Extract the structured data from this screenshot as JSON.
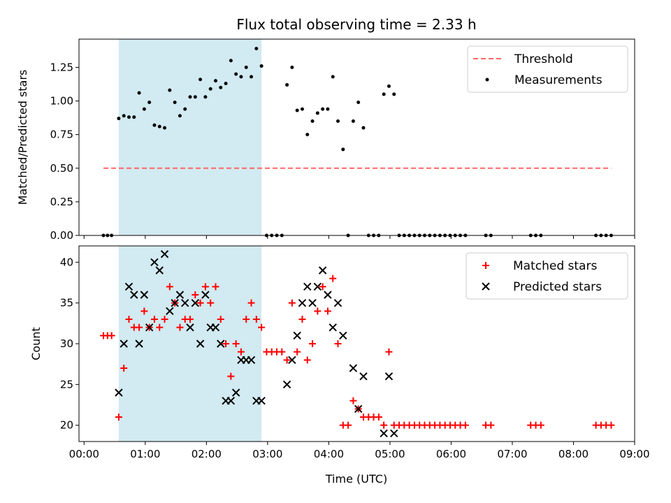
{
  "chart_data": {
    "type": "scatter",
    "title": "Flux total observing time = 2.33 h",
    "shaded_interval": {
      "start": "00:34",
      "end": "02:54",
      "color": "#add8e6"
    },
    "x_axis": {
      "label": "Time (UTC)",
      "range": [
        "23:55",
        "09:00"
      ],
      "ticks": [
        "00:00",
        "01:00",
        "02:00",
        "03:00",
        "04:00",
        "05:00",
        "06:00",
        "07:00",
        "08:00",
        "09:00"
      ]
    },
    "panels": [
      {
        "ylabel": "Matched/Predicted stars",
        "ylim": [
          0,
          1.46
        ],
        "yticks": [
          "0.00",
          "0.25",
          "0.50",
          "0.75",
          "1.00",
          "1.25"
        ],
        "legend": [
          "Threshold",
          "Measurements"
        ],
        "threshold": {
          "name": "Threshold",
          "value": 0.5,
          "x_start": "00:19",
          "x_end": "08:37",
          "color": "#ff6666"
        },
        "series": [
          {
            "name": "Measurements",
            "color": "#000000",
            "points": [
              [
                "00:19",
                0
              ],
              [
                "00:23",
                0
              ],
              [
                "00:27",
                0
              ],
              [
                "00:34",
                0.87
              ],
              [
                "00:39",
                0.89
              ],
              [
                "00:44",
                0.88
              ],
              [
                "00:49",
                0.88
              ],
              [
                "00:54",
                1.06
              ],
              [
                "00:59",
                0.94
              ],
              [
                "01:04",
                0.99
              ],
              [
                "01:09",
                0.82
              ],
              [
                "01:14",
                0.81
              ],
              [
                "01:19",
                0.8
              ],
              [
                "01:24",
                1.08
              ],
              [
                "01:29",
                0.99
              ],
              [
                "01:34",
                0.89
              ],
              [
                "01:39",
                0.94
              ],
              [
                "01:44",
                1.03
              ],
              [
                "01:49",
                1.03
              ],
              [
                "01:54",
                1.16
              ],
              [
                "01:59",
                1.03
              ],
              [
                "02:04",
                1.09
              ],
              [
                "02:09",
                1.15
              ],
              [
                "02:14",
                1.1
              ],
              [
                "02:19",
                1.13
              ],
              [
                "02:24",
                1.3
              ],
              [
                "02:29",
                1.2
              ],
              [
                "02:34",
                1.18
              ],
              [
                "02:39",
                1.25
              ],
              [
                "02:44",
                1.18
              ],
              [
                "02:49",
                1.39
              ],
              [
                "02:54",
                1.26
              ],
              [
                "02:59",
                0
              ],
              [
                "03:04",
                0
              ],
              [
                "03:09",
                0
              ],
              [
                "03:14",
                0
              ],
              [
                "03:19",
                1.12
              ],
              [
                "03:24",
                1.25
              ],
              [
                "03:29",
                0.93
              ],
              [
                "03:34",
                0.94
              ],
              [
                "03:39",
                0.75
              ],
              [
                "03:44",
                0.85
              ],
              [
                "03:49",
                0.91
              ],
              [
                "03:54",
                0.94
              ],
              [
                "03:59",
                0.94
              ],
              [
                "04:04",
                1.18
              ],
              [
                "04:09",
                0.85
              ],
              [
                "04:14",
                0.64
              ],
              [
                "04:19",
                0
              ],
              [
                "04:24",
                0.85
              ],
              [
                "04:29",
                0.99
              ],
              [
                "04:34",
                0.8
              ],
              [
                "04:39",
                0
              ],
              [
                "04:44",
                0
              ],
              [
                "04:49",
                0
              ],
              [
                "04:54",
                1.05
              ],
              [
                "04:59",
                1.11
              ],
              [
                "05:04",
                1.05
              ],
              [
                "05:09",
                0
              ],
              [
                "05:14",
                0
              ],
              [
                "05:19",
                0
              ],
              [
                "05:24",
                0
              ],
              [
                "05:29",
                0
              ],
              [
                "05:34",
                0
              ],
              [
                "05:39",
                0
              ],
              [
                "05:44",
                0
              ],
              [
                "05:49",
                0
              ],
              [
                "05:54",
                0
              ],
              [
                "05:59",
                0
              ],
              [
                "06:04",
                0
              ],
              [
                "06:09",
                0
              ],
              [
                "06:14",
                0
              ],
              [
                "06:34",
                0
              ],
              [
                "06:39",
                0
              ],
              [
                "07:18",
                0
              ],
              [
                "07:23",
                0
              ],
              [
                "07:28",
                0
              ],
              [
                "08:22",
                0
              ],
              [
                "08:27",
                0
              ],
              [
                "08:32",
                0
              ],
              [
                "08:37",
                0
              ]
            ]
          }
        ]
      },
      {
        "ylabel": "Count",
        "ylim": [
          18,
          42
        ],
        "yticks": [
          "20",
          "25",
          "30",
          "35",
          "40"
        ],
        "legend": [
          "Matched stars",
          "Predicted stars"
        ],
        "series": [
          {
            "name": "Matched stars",
            "marker": "plus",
            "color": "#ff0000",
            "points": [
              [
                "00:19",
                31
              ],
              [
                "00:23",
                31
              ],
              [
                "00:27",
                31
              ],
              [
                "00:34",
                21
              ],
              [
                "00:39",
                27
              ],
              [
                "00:44",
                33
              ],
              [
                "00:49",
                32
              ],
              [
                "00:54",
                32
              ],
              [
                "00:59",
                34
              ],
              [
                "01:04",
                32
              ],
              [
                "01:09",
                33
              ],
              [
                "01:14",
                32
              ],
              [
                "01:19",
                33
              ],
              [
                "01:24",
                37
              ],
              [
                "01:29",
                35
              ],
              [
                "01:34",
                32
              ],
              [
                "01:39",
                33
              ],
              [
                "01:44",
                33
              ],
              [
                "01:49",
                36
              ],
              [
                "01:54",
                35
              ],
              [
                "01:59",
                37
              ],
              [
                "02:04",
                35
              ],
              [
                "02:09",
                37
              ],
              [
                "02:14",
                33
              ],
              [
                "02:19",
                30
              ],
              [
                "02:24",
                26
              ],
              [
                "02:29",
                30
              ],
              [
                "02:34",
                29
              ],
              [
                "02:39",
                33
              ],
              [
                "02:44",
                35
              ],
              [
                "02:49",
                33
              ],
              [
                "02:54",
                32
              ],
              [
                "02:59",
                29
              ],
              [
                "03:04",
                29
              ],
              [
                "03:09",
                29
              ],
              [
                "03:14",
                29
              ],
              [
                "03:19",
                28
              ],
              [
                "03:24",
                35
              ],
              [
                "03:29",
                29
              ],
              [
                "03:34",
                33
              ],
              [
                "03:39",
                28
              ],
              [
                "03:44",
                30
              ],
              [
                "03:49",
                34
              ],
              [
                "03:54",
                37
              ],
              [
                "03:59",
                34
              ],
              [
                "04:04",
                38
              ],
              [
                "04:09",
                30
              ],
              [
                "04:14",
                20
              ],
              [
                "04:19",
                20
              ],
              [
                "04:24",
                23
              ],
              [
                "04:29",
                22
              ],
              [
                "04:34",
                21
              ],
              [
                "04:39",
                21
              ],
              [
                "04:44",
                21
              ],
              [
                "04:49",
                21
              ],
              [
                "04:54",
                20
              ],
              [
                "04:59",
                29
              ],
              [
                "05:04",
                20
              ],
              [
                "05:09",
                20
              ],
              [
                "05:14",
                20
              ],
              [
                "05:19",
                20
              ],
              [
                "05:24",
                20
              ],
              [
                "05:29",
                20
              ],
              [
                "05:34",
                20
              ],
              [
                "05:39",
                20
              ],
              [
                "05:44",
                20
              ],
              [
                "05:49",
                20
              ],
              [
                "05:54",
                20
              ],
              [
                "05:59",
                20
              ],
              [
                "06:04",
                20
              ],
              [
                "06:09",
                20
              ],
              [
                "06:14",
                20
              ],
              [
                "06:34",
                20
              ],
              [
                "06:39",
                20
              ],
              [
                "07:18",
                20
              ],
              [
                "07:23",
                20
              ],
              [
                "07:28",
                20
              ],
              [
                "08:22",
                20
              ],
              [
                "08:27",
                20
              ],
              [
                "08:32",
                20
              ],
              [
                "08:37",
                20
              ]
            ]
          },
          {
            "name": "Predicted stars",
            "marker": "x",
            "color": "#000000",
            "points": [
              [
                "00:34",
                24
              ],
              [
                "00:39",
                30
              ],
              [
                "00:44",
                37
              ],
              [
                "00:49",
                36
              ],
              [
                "00:54",
                30
              ],
              [
                "00:59",
                36
              ],
              [
                "01:04",
                32
              ],
              [
                "01:09",
                40
              ],
              [
                "01:14",
                39
              ],
              [
                "01:19",
                41
              ],
              [
                "01:24",
                34
              ],
              [
                "01:29",
                35
              ],
              [
                "01:34",
                36
              ],
              [
                "01:39",
                35
              ],
              [
                "01:44",
                32
              ],
              [
                "01:49",
                35
              ],
              [
                "01:54",
                30
              ],
              [
                "01:59",
                36
              ],
              [
                "02:04",
                32
              ],
              [
                "02:09",
                32
              ],
              [
                "02:14",
                30
              ],
              [
                "02:19",
                23
              ],
              [
                "02:24",
                23
              ],
              [
                "02:29",
                24
              ],
              [
                "02:34",
                28
              ],
              [
                "02:39",
                28
              ],
              [
                "02:44",
                28
              ],
              [
                "02:49",
                23
              ],
              [
                "02:54",
                23
              ],
              [
                "03:19",
                25
              ],
              [
                "03:24",
                28
              ],
              [
                "03:29",
                31
              ],
              [
                "03:34",
                35
              ],
              [
                "03:39",
                37
              ],
              [
                "03:44",
                35
              ],
              [
                "03:49",
                37
              ],
              [
                "03:54",
                39
              ],
              [
                "03:59",
                36
              ],
              [
                "04:04",
                32
              ],
              [
                "04:09",
                35
              ],
              [
                "04:14",
                31
              ],
              [
                "04:24",
                27
              ],
              [
                "04:29",
                22
              ],
              [
                "04:34",
                26
              ],
              [
                "04:54",
                19
              ],
              [
                "04:59",
                26
              ],
              [
                "05:04",
                19
              ]
            ]
          }
        ]
      }
    ]
  }
}
